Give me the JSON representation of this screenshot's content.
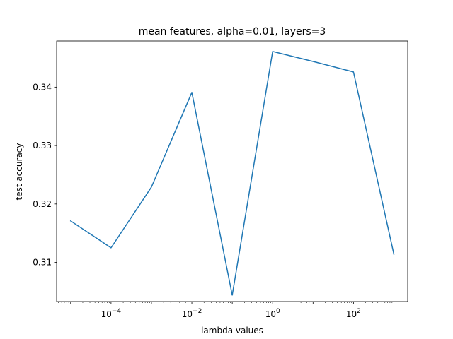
{
  "chart_data": {
    "type": "line",
    "title": "mean features, alpha=0.01, layers=3",
    "xlabel": "lambda values",
    "ylabel": "test accuracy",
    "xscale": "log",
    "grid": false,
    "line_color": "#1f77b4",
    "x": [
      1e-05,
      0.0001,
      0.001,
      0.01,
      0.1,
      1,
      10,
      100,
      1000
    ],
    "values": [
      0.3171,
      0.3125,
      0.3229,
      0.3391,
      0.3044,
      0.3461,
      0.3444,
      0.3426,
      0.3114
    ],
    "xlim": [
      4.5e-06,
      2200
    ],
    "ylim": [
      0.3033,
      0.3479
    ],
    "xticks": [
      {
        "value": 0.0001,
        "base": "10",
        "exp": "−4"
      },
      {
        "value": 0.01,
        "base": "10",
        "exp": "−2"
      },
      {
        "value": 1,
        "base": "10",
        "exp": "0"
      },
      {
        "value": 100,
        "base": "10",
        "exp": "2"
      }
    ],
    "yticks": [
      {
        "value": 0.31,
        "label": "0.31"
      },
      {
        "value": 0.32,
        "label": "0.32"
      },
      {
        "value": 0.33,
        "label": "0.33"
      },
      {
        "value": 0.34,
        "label": "0.34"
      }
    ]
  }
}
